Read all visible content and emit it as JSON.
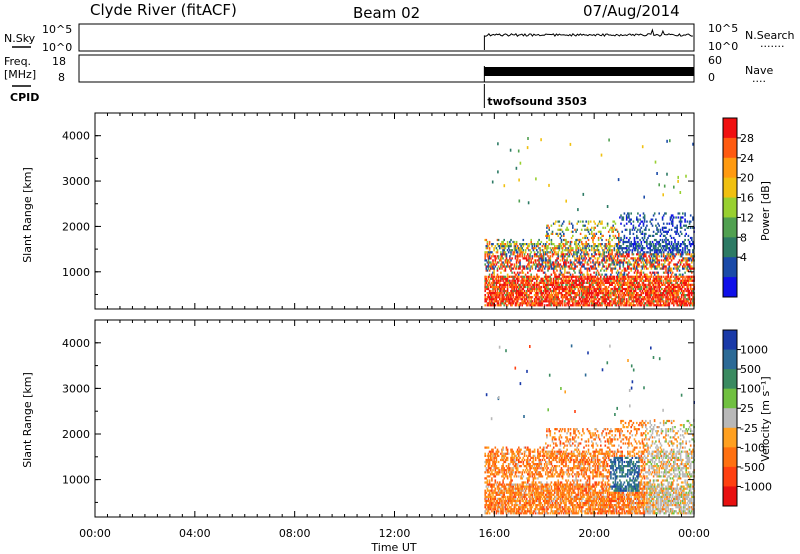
{
  "header": {
    "station": "Clyde River (fitACF)",
    "beam": "Beam 02",
    "date": "07/Aug/2014"
  },
  "strips": {
    "nsky": {
      "left_label": "N.Sky",
      "left_ticks": [
        "10^5",
        "10^0"
      ],
      "right_ticks": [
        "10^5",
        "10^0"
      ],
      "right_label": "N.Search",
      "right_dots": "......."
    },
    "freq": {
      "left_label_1": "Freq.",
      "left_label_2": "[MHz]",
      "left_ticks": [
        "18",
        "8"
      ],
      "right_ticks": [
        "60",
        "0"
      ],
      "right_label": "Nave",
      "right_dots": "...."
    },
    "cpid": {
      "label": "CPID",
      "program": "twofsound 3503"
    }
  },
  "chart_data": [
    {
      "type": "heatmap",
      "panel": "power",
      "ylabel": "Slant Range [km]",
      "y_ticks": [
        1000,
        2000,
        3000,
        4000
      ],
      "ylim": [
        180,
        4500
      ],
      "x_ticks": [
        "00:00",
        "04:00",
        "08:00",
        "12:00",
        "16:00",
        "20:00",
        "00:00"
      ],
      "xlim_hours": [
        0,
        24
      ],
      "data_start_hour": 15.6,
      "colorbar": {
        "label": "Power [dB]",
        "ticks": [
          "28",
          "24",
          "20",
          "16",
          "12",
          "8",
          "4"
        ],
        "colors": [
          "#f01010",
          "#ff5a10",
          "#ff9a10",
          "#f0c010",
          "#98d030",
          "#50a050",
          "#2c7a64",
          "#1a4aa8",
          "#1010e8"
        ]
      }
    },
    {
      "type": "heatmap",
      "panel": "velocity",
      "ylabel": "Slant Range [km]",
      "y_ticks": [
        1000,
        2000,
        3000,
        4000
      ],
      "ylim": [
        180,
        4500
      ],
      "x_ticks": [
        "00:00",
        "04:00",
        "08:00",
        "12:00",
        "16:00",
        "20:00",
        "00:00"
      ],
      "xlabel": "Time UT",
      "xlim_hours": [
        0,
        24
      ],
      "data_start_hour": 15.6,
      "colorbar": {
        "label": "Velocity [m s⁻¹]",
        "ticks": [
          "1000",
          "500",
          "100",
          "25",
          "-25",
          "-100",
          "-500",
          "-1000"
        ],
        "colors": [
          "#1a3aa8",
          "#2c6a96",
          "#3a8a60",
          "#70c040",
          "#b8b8b8",
          "#ffa020",
          "#ff7010",
          "#ff4010",
          "#e81010"
        ]
      }
    }
  ]
}
